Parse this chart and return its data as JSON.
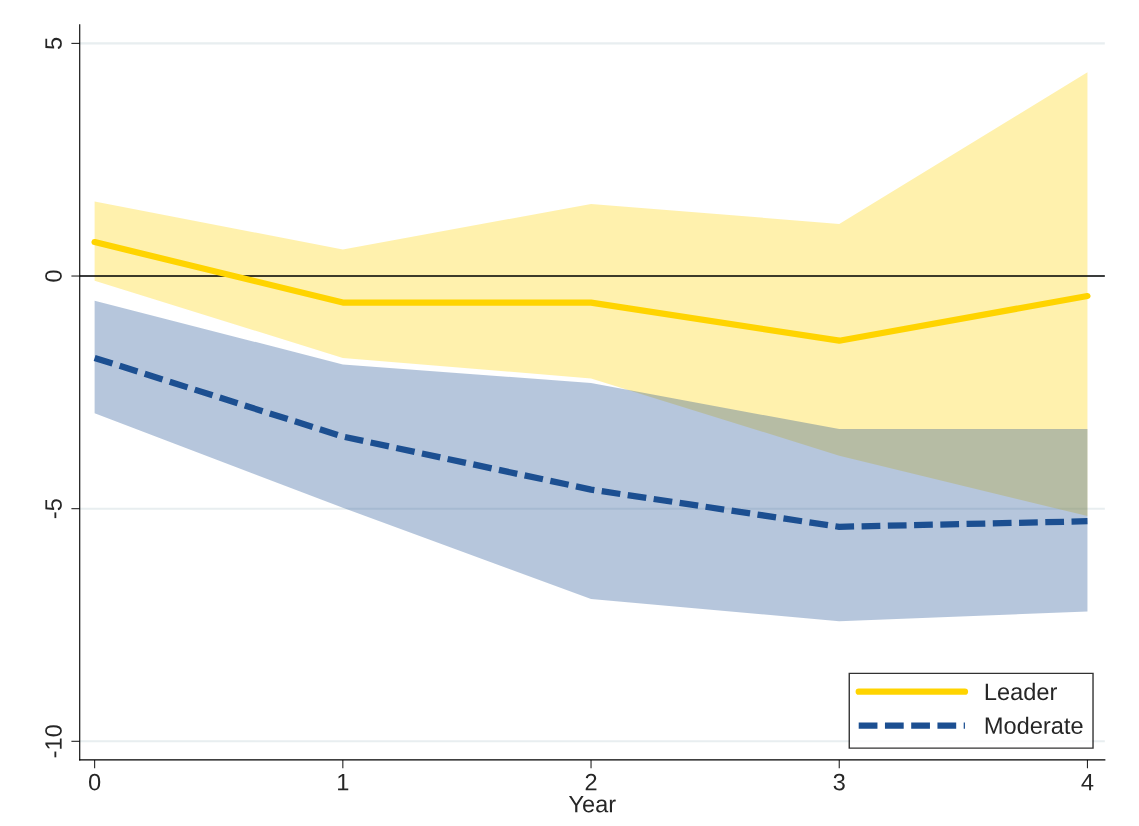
{
  "chart_data": {
    "type": "line",
    "xlabel": "Year",
    "x": [
      0,
      1,
      2,
      3,
      4
    ],
    "series": [
      {
        "name": "Leader",
        "color": "#ffd400",
        "line_style": "solid",
        "values": [
          0.73,
          -0.57,
          -0.57,
          -1.39,
          -0.43
        ],
        "lower": [
          -0.1,
          -1.76,
          -2.2,
          -3.86,
          -5.16
        ],
        "upper": [
          1.6,
          0.57,
          1.55,
          1.12,
          4.38
        ]
      },
      {
        "name": "Moderate",
        "color": "#1c4f91",
        "line_style": "dashed",
        "values": [
          -1.76,
          -3.45,
          -4.59,
          -5.39,
          -5.27
        ],
        "lower": [
          -2.95,
          -4.98,
          -6.94,
          -7.42,
          -7.21
        ],
        "upper": [
          -0.53,
          -1.9,
          -2.3,
          -3.29,
          -3.29
        ]
      }
    ],
    "xlim": [
      -0.06,
      4.07
    ],
    "ylim": [
      -10.4,
      5.4
    ],
    "xticks": [
      0,
      1,
      2,
      3,
      4
    ],
    "yticks": [
      -10,
      -5,
      0,
      5
    ],
    "ref_lines": [
      {
        "axis": "y",
        "value": 0,
        "color": "#000000"
      }
    ],
    "grid": "y",
    "legend": "bottom right"
  }
}
